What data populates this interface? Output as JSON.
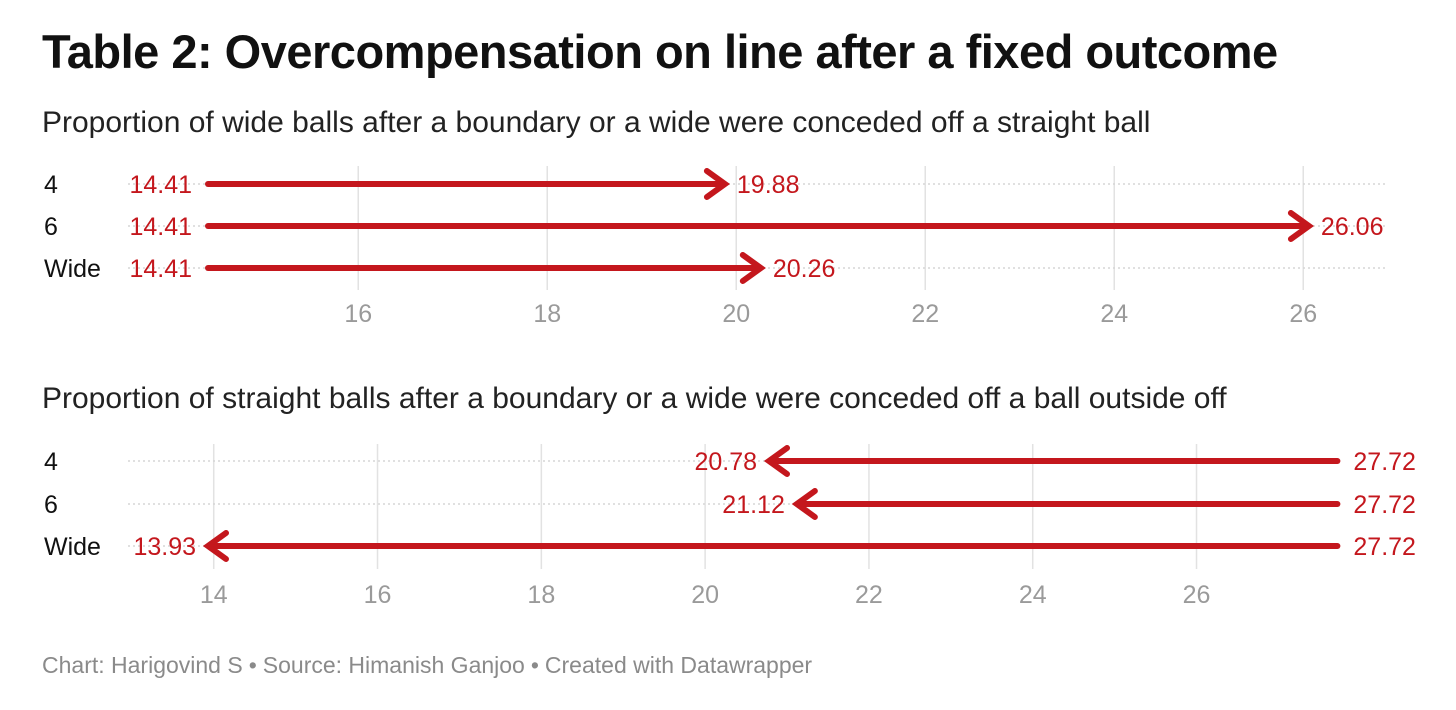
{
  "title": "Table 2: Overcompensation on line after a fixed outcome",
  "chart_data": [
    {
      "type": "arrow",
      "subtitle": "Proportion of wide balls after a boundary or a wide were conceded off a straight ball",
      "xlabel": "",
      "ylabel": "",
      "categories": [
        "4",
        "6",
        "Wide"
      ],
      "start_values": [
        14.41,
        14.41,
        14.41
      ],
      "end_values": [
        19.88,
        26.06,
        20.26
      ],
      "start_labels": [
        "14.41",
        "14.41",
        "14.41"
      ],
      "end_labels": [
        "19.88",
        "26.06",
        "20.26"
      ],
      "xticks": [
        16,
        18,
        20,
        22,
        24,
        26
      ],
      "xtick_labels": [
        "16",
        "18",
        "20",
        "22",
        "24",
        "26"
      ],
      "xlim": [
        14.41,
        26.06
      ],
      "grid": true,
      "legend": "none"
    },
    {
      "type": "arrow",
      "subtitle": "Proportion of straight balls after a boundary or a wide were conceded off a ball outside off",
      "xlabel": "",
      "ylabel": "",
      "categories": [
        "4",
        "6",
        "Wide"
      ],
      "start_values": [
        27.72,
        27.72,
        27.72
      ],
      "end_values": [
        20.78,
        21.12,
        13.93
      ],
      "start_labels": [
        "27.72",
        "27.72",
        "27.72"
      ],
      "end_labels": [
        "20.78",
        "21.12",
        "13.93"
      ],
      "xticks": [
        14,
        16,
        18,
        20,
        22,
        24,
        26
      ],
      "xtick_labels": [
        "14",
        "16",
        "18",
        "20",
        "22",
        "24",
        "26"
      ],
      "xlim": [
        13.93,
        27.72
      ],
      "grid": true,
      "legend": "none"
    }
  ],
  "colors": {
    "arrow": "#c4171d",
    "axis_text": "#9a9a9a",
    "grid": "#e2e2e2",
    "text": "#111111"
  },
  "credit": {
    "author": "Chart: Harigovind S",
    "source": "Source: Himanish Ganjoo",
    "tool": "Created with Datawrapper",
    "separator": "•"
  }
}
